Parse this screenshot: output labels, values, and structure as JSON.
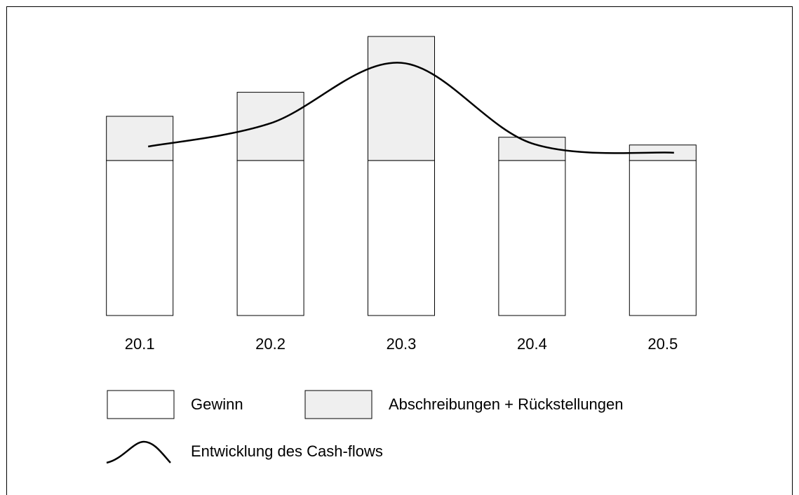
{
  "chart_data": {
    "type": "bar",
    "stacked": true,
    "categories": [
      "20.1",
      "20.2",
      "20.3",
      "20.4",
      "20.5"
    ],
    "series": [
      {
        "name": "Gewinn",
        "color": "#ffffff",
        "values": [
          100,
          100,
          100,
          100,
          100
        ]
      },
      {
        "name": "Abschreibungen + Rückstellungen",
        "color": "#efefef",
        "values": [
          28.5,
          44,
          80,
          15,
          10
        ]
      },
      {
        "name": "Entwicklung des Cash-flows",
        "type": "line",
        "color": "#000000",
        "values": [
          109,
          124,
          163,
          111,
          105
        ]
      }
    ],
    "ylim": [
      0,
      180
    ]
  }
}
